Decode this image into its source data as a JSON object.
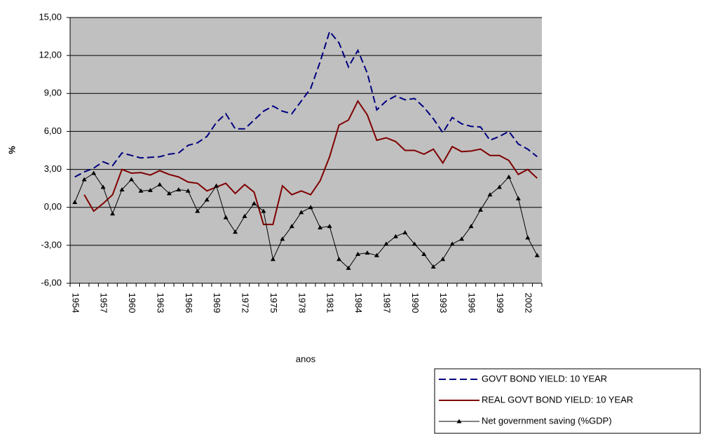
{
  "chart_data": {
    "type": "line",
    "y_label": "%",
    "x_label": "anos",
    "categories": [
      "1954",
      null,
      null,
      "1957",
      null,
      null,
      "1960",
      null,
      null,
      "1963",
      null,
      null,
      "1966",
      null,
      null,
      "1969",
      null,
      null,
      "1972",
      null,
      null,
      "1975",
      null,
      null,
      "1978",
      null,
      null,
      "1981",
      null,
      null,
      "1984",
      null,
      null,
      "1987",
      null,
      null,
      "1990",
      null,
      null,
      "1993",
      null,
      null,
      "1996",
      null,
      null,
      "1999",
      null,
      null,
      "2002",
      null
    ],
    "series": [
      {
        "name": "GOVT BOND YIELD: 10 YEAR",
        "color": "#000080",
        "dash": true,
        "marker": false,
        "values": [
          2.4,
          2.8,
          3.1,
          3.6,
          3.3,
          4.3,
          4.1,
          3.9,
          3.95,
          4.0,
          4.2,
          4.3,
          4.9,
          5.1,
          5.6,
          6.7,
          7.4,
          6.2,
          6.2,
          6.9,
          7.6,
          8.0,
          7.6,
          7.4,
          8.4,
          9.4,
          11.5,
          13.9,
          13.0,
          11.1,
          12.4,
          10.6,
          7.7,
          8.4,
          8.8,
          8.5,
          8.6,
          7.9,
          7.0,
          5.9,
          7.1,
          6.6,
          6.4,
          6.35,
          5.3,
          5.6,
          6.0,
          5.0,
          4.6,
          4.0
        ]
      },
      {
        "name": "REAL GOVT BOND YIELD: 10 YEAR",
        "color": "#800000",
        "dash": false,
        "marker": false,
        "values": [
          null,
          1.0,
          -0.3,
          0.3,
          1.0,
          3.0,
          2.7,
          2.75,
          2.55,
          2.9,
          2.6,
          2.4,
          2.0,
          1.9,
          1.3,
          1.6,
          1.9,
          1.1,
          1.8,
          1.2,
          -1.35,
          -1.35,
          1.7,
          1.0,
          1.3,
          1.0,
          2.1,
          4.0,
          6.5,
          6.9,
          8.4,
          7.3,
          5.3,
          5.5,
          5.2,
          4.5,
          4.5,
          4.2,
          4.6,
          3.5,
          4.8,
          4.4,
          4.45,
          4.6,
          4.1,
          4.1,
          3.7,
          2.6,
          3.0,
          2.3
        ]
      },
      {
        "name": "Net government saving (%GDP)",
        "color": "#000000",
        "dash": false,
        "marker": true,
        "values": [
          0.4,
          2.2,
          2.7,
          1.6,
          -0.5,
          1.4,
          2.2,
          1.3,
          1.35,
          1.8,
          1.1,
          1.4,
          1.3,
          -0.3,
          0.6,
          1.7,
          -0.8,
          -1.95,
          -0.7,
          0.3,
          -0.3,
          -4.1,
          -2.5,
          -1.5,
          -0.4,
          0.0,
          -1.6,
          -1.5,
          -4.1,
          -4.8,
          -3.7,
          -3.6,
          -3.8,
          -2.9,
          -2.3,
          -2.0,
          -2.9,
          -3.7,
          -4.7,
          -4.1,
          -2.9,
          -2.5,
          -1.5,
          -0.2,
          1.0,
          1.6,
          2.4,
          0.7,
          -2.4,
          -3.8
        ]
      }
    ],
    "ylim": [
      -6,
      15
    ],
    "yticks": [
      {
        "value": -6,
        "label": "-6,00"
      },
      {
        "value": -3,
        "label": "-3,00"
      },
      {
        "value": 0,
        "label": "0,00"
      },
      {
        "value": 3,
        "label": "3,00"
      },
      {
        "value": 6,
        "label": "6,00"
      },
      {
        "value": 9,
        "label": "9,00"
      },
      {
        "value": 12,
        "label": "12,00"
      },
      {
        "value": 15,
        "label": "15,00"
      }
    ],
    "grid": true,
    "legend": "bottom-right"
  }
}
